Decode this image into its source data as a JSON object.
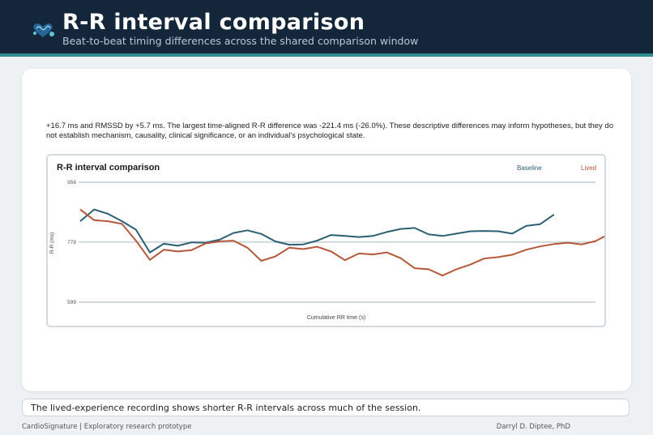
{
  "header": {
    "title": "R-R interval comparison",
    "subtitle": "Beat-to-beat timing differences across the shared comparison window",
    "logo_icon": "heart-brain-icon"
  },
  "card": {
    "summary": "+16.7 ms and RMSSD by +5.7 ms. The largest time-aligned R-R difference was -221.4 ms (-26.0%). These descriptive differences may inform hypotheses, but they do not establish mechanism, causality, clinical significance, or an individual's psychological state."
  },
  "footer": {
    "note": "The lived-experience recording shows shorter R-R intervals across much of the session.",
    "left": "CardioSignature | Exploratory research prototype",
    "right": "Darryl D. Diptee, PhD"
  },
  "colors": {
    "header_bg": "#13263a",
    "accent": "#2a8f8e",
    "baseline": "#2c5f73",
    "lived": "#b5583a"
  },
  "chart_data": {
    "type": "line",
    "title": "R-R interval comparison",
    "xlabel": "Cumulative RR time (s)",
    "ylabel": "R-R (ms)",
    "ylim": [
      599,
      956
    ],
    "yticks": [
      599,
      778,
      956
    ],
    "grid": true,
    "legend_position": "top-right",
    "series": [
      {
        "name": "Baseline",
        "color": "#2c5f73",
        "values": [
          840,
          875,
          862,
          840,
          815,
          747,
          773,
          767,
          777,
          776,
          785,
          805,
          813,
          802,
          780,
          770,
          771,
          782,
          799,
          796,
          793,
          796,
          808,
          817,
          820,
          801,
          796,
          803,
          810,
          811,
          810,
          803,
          826,
          831,
          860
        ]
      },
      {
        "name": "Lived",
        "color": "#b5583a",
        "values": [
          875,
          843,
          840,
          832,
          782,
          725,
          755,
          750,
          754,
          774,
          780,
          782,
          761,
          722,
          735,
          761,
          757,
          764,
          750,
          724,
          744,
          741,
          747,
          730,
          700,
          697,
          678,
          697,
          711,
          729,
          733,
          740,
          755,
          765,
          772,
          776,
          771,
          781,
          803
        ]
      }
    ]
  }
}
